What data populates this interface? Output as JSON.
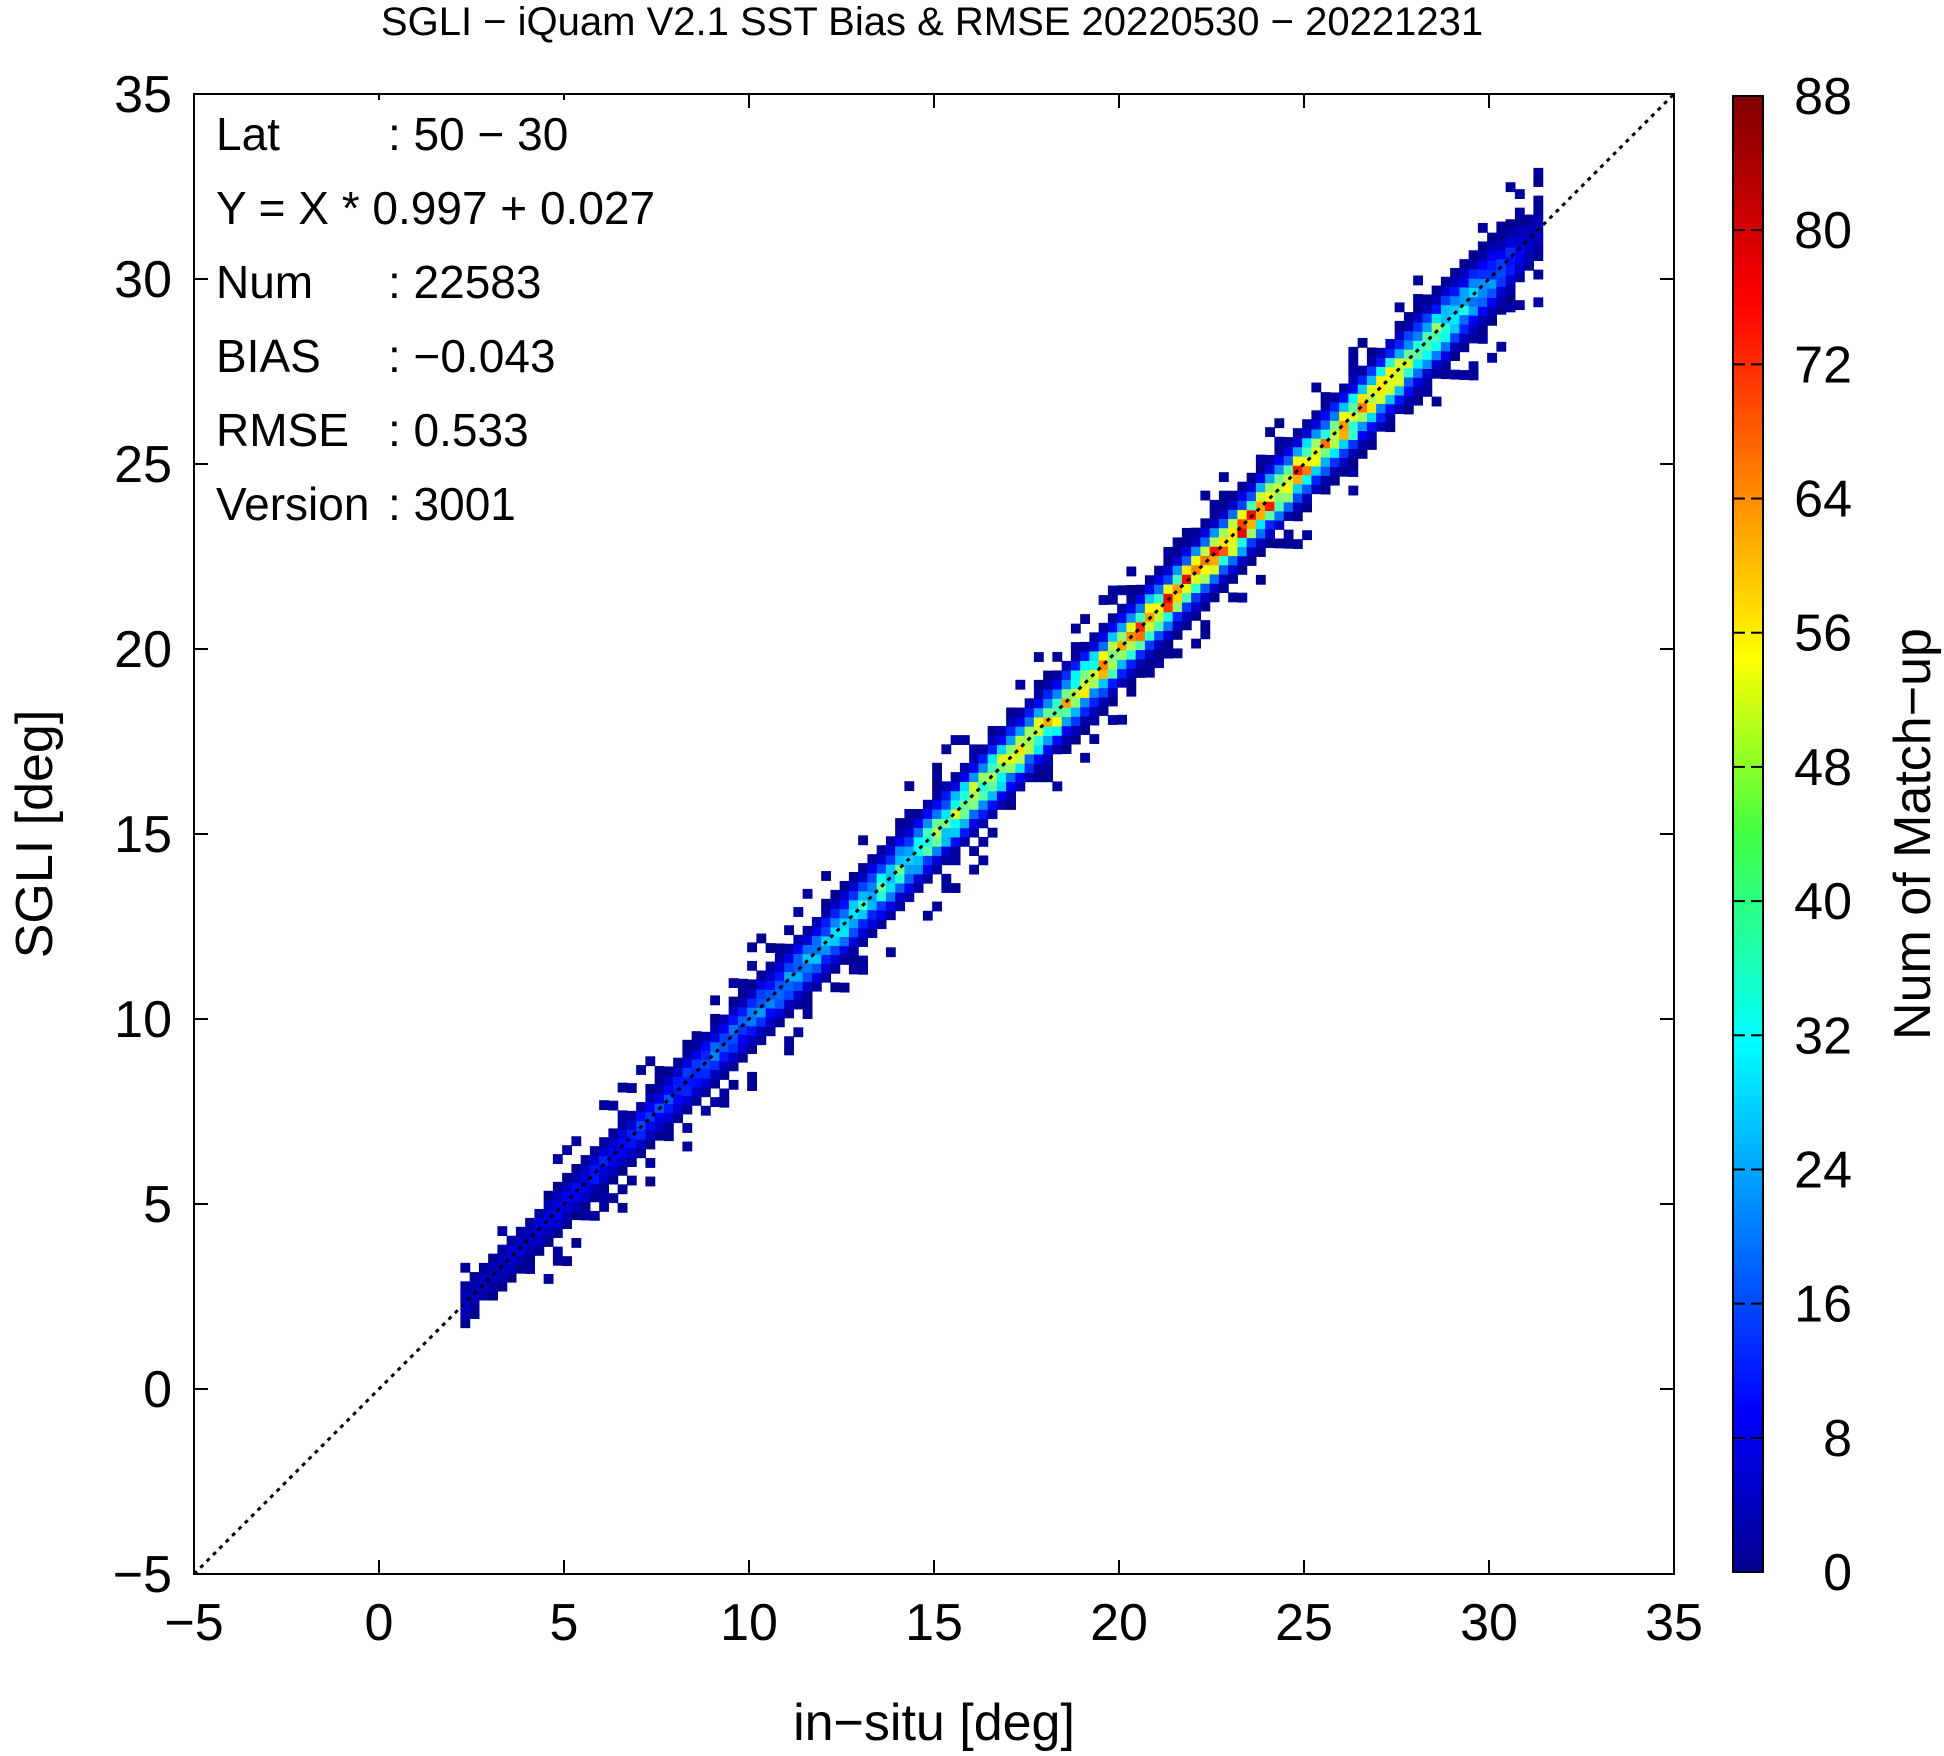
{
  "chart_data": {
    "type": "heatmap",
    "title": "SGLI − iQuam V2.1 SST Bias & RMSE 20220530 − 20221231",
    "xlabel": "in−situ [deg]",
    "ylabel": "SGLI [deg]",
    "xlim": [
      -5,
      35
    ],
    "ylim": [
      -5,
      35
    ],
    "x_ticks": [
      -5,
      0,
      5,
      10,
      15,
      20,
      25,
      30,
      35
    ],
    "y_ticks": [
      -5,
      0,
      5,
      10,
      15,
      20,
      25,
      30,
      35
    ],
    "x_tick_labels": [
      "−5",
      "0",
      "5",
      "10",
      "15",
      "20",
      "25",
      "30",
      "35"
    ],
    "y_tick_labels": [
      "−5",
      "0",
      "5",
      "10",
      "15",
      "20",
      "25",
      "30",
      "35"
    ],
    "grid": false,
    "reference_line": {
      "style": "dotted",
      "slope": 1,
      "intercept": 0
    },
    "colorbar": {
      "label": "Num of Match−up",
      "min": 0,
      "max": 88,
      "ticks": [
        0,
        8,
        16,
        24,
        32,
        40,
        48,
        56,
        64,
        72,
        80,
        88
      ],
      "colormap": "jet"
    },
    "stats": [
      {
        "key": "Lat",
        "value": ": 50 − 30"
      },
      {
        "key": "Y = X * 0.997 + 0.027",
        "value": ""
      },
      {
        "key": "Num",
        "value": ": 22583"
      },
      {
        "key": "BIAS",
        "value": ": −0.043"
      },
      {
        "key": "RMSE",
        "value": ": 0.533"
      },
      {
        "key": "Version",
        "value": ": 3001"
      }
    ],
    "density_profile": {
      "x_range": [
        2.2,
        31.2
      ],
      "bin_size": 0.25,
      "fit_slope": 0.997,
      "fit_intercept": 0.027,
      "peak_x": [
        {
          "x": 3,
          "peak": 6,
          "spread": 0.3
        },
        {
          "x": 6,
          "peak": 12,
          "spread": 0.33
        },
        {
          "x": 8,
          "peak": 16,
          "spread": 0.36
        },
        {
          "x": 10,
          "peak": 22,
          "spread": 0.4
        },
        {
          "x": 12,
          "peak": 28,
          "spread": 0.42
        },
        {
          "x": 14,
          "peak": 36,
          "spread": 0.44
        },
        {
          "x": 16,
          "peak": 48,
          "spread": 0.44
        },
        {
          "x": 18,
          "peak": 52,
          "spread": 0.44
        },
        {
          "x": 20,
          "peak": 58,
          "spread": 0.42
        },
        {
          "x": 22,
          "peak": 70,
          "spread": 0.4
        },
        {
          "x": 23,
          "peak": 72,
          "spread": 0.4
        },
        {
          "x": 25,
          "peak": 60,
          "spread": 0.42
        },
        {
          "x": 27,
          "peak": 55,
          "spread": 0.44
        },
        {
          "x": 28.5,
          "peak": 40,
          "spread": 0.46
        },
        {
          "x": 30,
          "peak": 20,
          "spread": 0.48
        },
        {
          "x": 31,
          "peak": 6,
          "spread": 0.4
        }
      ]
    }
  }
}
